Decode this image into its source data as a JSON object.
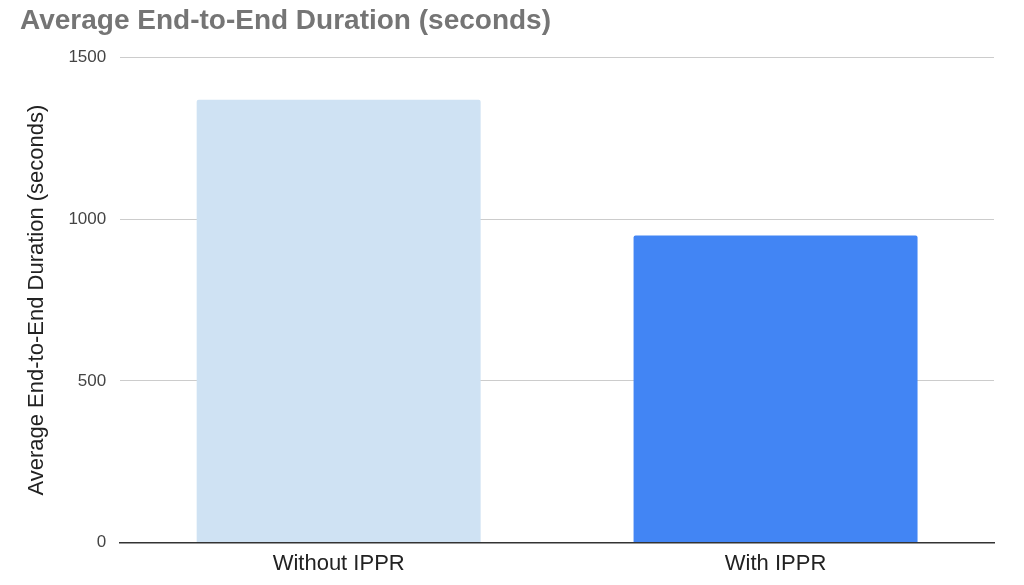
{
  "chart_data": {
    "type": "bar",
    "title": "Average End-to-End Duration (seconds)",
    "ylabel": "Average End-to-End Duration (seconds)",
    "categories": [
      "Without IPPR",
      "With IPPR"
    ],
    "values": [
      1370,
      950
    ],
    "colors": [
      "#cfe2f3",
      "#4285f4"
    ],
    "ylim": [
      0,
      1500
    ],
    "yticks": [
      0,
      500,
      1000,
      1500
    ],
    "grid": "y",
    "legend": false
  }
}
